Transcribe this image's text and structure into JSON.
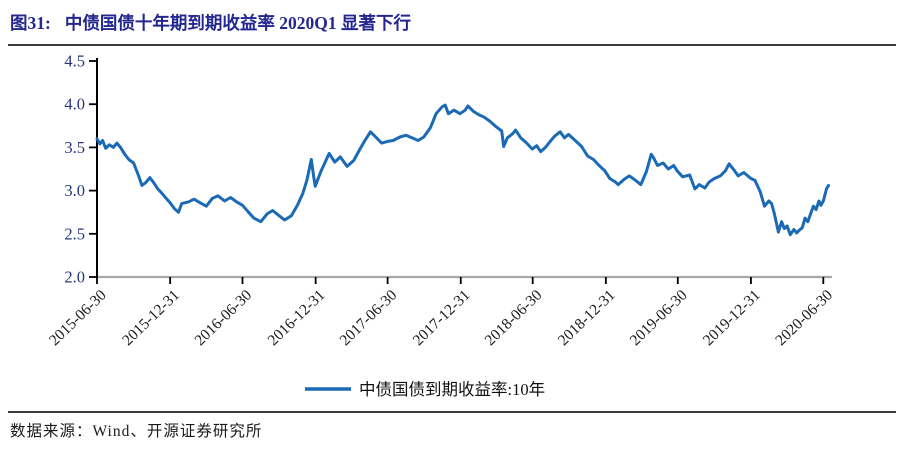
{
  "figure": {
    "title_label": "图31:",
    "title_text": "中债国债十年期到期收益率 2020Q1 显著下行",
    "source_text": "数据来源：Wind、开源证券研究所"
  },
  "colors": {
    "title_navy": "#23278f",
    "ytick_navy": "#27357e",
    "xtick_dark": "#1a1a1a",
    "line_blue": "#1b6ab5",
    "axis_gray": "#a8a8a8",
    "axis_black": "#000000",
    "rule_dark": "#3d3d3d"
  },
  "chart_data": {
    "type": "line",
    "title": "",
    "xlabel": "",
    "ylabel": "",
    "grid": false,
    "ylim": [
      2.0,
      4.5
    ],
    "y_ticks": [
      "4.5",
      "4.0",
      "3.5",
      "3.0",
      "2.5",
      "2.0"
    ],
    "x_ticks": [
      "2015-06-30",
      "2015-12-31",
      "2016-06-30",
      "2016-12-31",
      "2017-06-30",
      "2017-12-31",
      "2018-06-30",
      "2018-12-31",
      "2019-06-30",
      "2019-12-31",
      "2020-06-30"
    ],
    "x_range": [
      "2015-06-30",
      "2020-07-13"
    ],
    "legend": {
      "position": "bottom",
      "entries": [
        "中债国债到期收益率:10年"
      ]
    },
    "series": [
      {
        "name": "中债国债到期收益率:10年",
        "color": "#1b6ab5",
        "points": [
          [
            "2015-06-30",
            3.6
          ],
          [
            "2015-07-07",
            3.54
          ],
          [
            "2015-07-14",
            3.58
          ],
          [
            "2015-07-22",
            3.49
          ],
          [
            "2015-07-31",
            3.53
          ],
          [
            "2015-08-10",
            3.5
          ],
          [
            "2015-08-19",
            3.55
          ],
          [
            "2015-08-28",
            3.5
          ],
          [
            "2015-09-08",
            3.42
          ],
          [
            "2015-09-18",
            3.36
          ],
          [
            "2015-09-30",
            3.32
          ],
          [
            "2015-10-12",
            3.18
          ],
          [
            "2015-10-21",
            3.06
          ],
          [
            "2015-10-30",
            3.09
          ],
          [
            "2015-11-10",
            3.15
          ],
          [
            "2015-11-20",
            3.09
          ],
          [
            "2015-11-30",
            3.02
          ],
          [
            "2015-12-10",
            2.97
          ],
          [
            "2015-12-21",
            2.91
          ],
          [
            "2015-12-31",
            2.86
          ],
          [
            "2016-01-11",
            2.79
          ],
          [
            "2016-01-21",
            2.75
          ],
          [
            "2016-01-29",
            2.85
          ],
          [
            "2016-02-16",
            2.87
          ],
          [
            "2016-02-29",
            2.9
          ],
          [
            "2016-03-15",
            2.86
          ],
          [
            "2016-03-31",
            2.82
          ],
          [
            "2016-04-15",
            2.91
          ],
          [
            "2016-04-29",
            2.94
          ],
          [
            "2016-05-16",
            2.88
          ],
          [
            "2016-05-31",
            2.92
          ],
          [
            "2016-06-15",
            2.87
          ],
          [
            "2016-06-30",
            2.83
          ],
          [
            "2016-07-15",
            2.75
          ],
          [
            "2016-07-29",
            2.68
          ],
          [
            "2016-08-15",
            2.64
          ],
          [
            "2016-08-31",
            2.73
          ],
          [
            "2016-09-14",
            2.77
          ],
          [
            "2016-09-30",
            2.71
          ],
          [
            "2016-10-14",
            2.66
          ],
          [
            "2016-10-31",
            2.71
          ],
          [
            "2016-11-15",
            2.83
          ],
          [
            "2016-11-29",
            2.97
          ],
          [
            "2016-12-09",
            3.12
          ],
          [
            "2016-12-20",
            3.36
          ],
          [
            "2016-12-26",
            3.16
          ],
          [
            "2016-12-30",
            3.05
          ],
          [
            "2017-01-13",
            3.22
          ],
          [
            "2017-02-03",
            3.43
          ],
          [
            "2017-02-17",
            3.33
          ],
          [
            "2017-03-03",
            3.39
          ],
          [
            "2017-03-20",
            3.28
          ],
          [
            "2017-04-06",
            3.35
          ],
          [
            "2017-04-20",
            3.47
          ],
          [
            "2017-05-04",
            3.58
          ],
          [
            "2017-05-18",
            3.68
          ],
          [
            "2017-05-31",
            3.62
          ],
          [
            "2017-06-15",
            3.55
          ],
          [
            "2017-06-30",
            3.57
          ],
          [
            "2017-07-14",
            3.58
          ],
          [
            "2017-07-31",
            3.62
          ],
          [
            "2017-08-15",
            3.64
          ],
          [
            "2017-08-31",
            3.61
          ],
          [
            "2017-09-15",
            3.58
          ],
          [
            "2017-09-29",
            3.62
          ],
          [
            "2017-10-16",
            3.73
          ],
          [
            "2017-10-30",
            3.89
          ],
          [
            "2017-11-14",
            3.97
          ],
          [
            "2017-11-22",
            3.99
          ],
          [
            "2017-11-30",
            3.89
          ],
          [
            "2017-12-14",
            3.93
          ],
          [
            "2017-12-29",
            3.89
          ],
          [
            "2018-01-11",
            3.93
          ],
          [
            "2018-01-18",
            3.98
          ],
          [
            "2018-01-31",
            3.92
          ],
          [
            "2018-02-14",
            3.88
          ],
          [
            "2018-02-28",
            3.85
          ],
          [
            "2018-03-15",
            3.8
          ],
          [
            "2018-03-30",
            3.74
          ],
          [
            "2018-04-13",
            3.69
          ],
          [
            "2018-04-18",
            3.51
          ],
          [
            "2018-04-27",
            3.61
          ],
          [
            "2018-05-11",
            3.66
          ],
          [
            "2018-05-18",
            3.7
          ],
          [
            "2018-05-31",
            3.61
          ],
          [
            "2018-06-15",
            3.55
          ],
          [
            "2018-06-29",
            3.48
          ],
          [
            "2018-07-10",
            3.52
          ],
          [
            "2018-07-20",
            3.45
          ],
          [
            "2018-08-01",
            3.5
          ],
          [
            "2018-08-13",
            3.57
          ],
          [
            "2018-08-24",
            3.63
          ],
          [
            "2018-09-07",
            3.68
          ],
          [
            "2018-09-18",
            3.61
          ],
          [
            "2018-09-28",
            3.65
          ],
          [
            "2018-10-15",
            3.58
          ],
          [
            "2018-10-31",
            3.51
          ],
          [
            "2018-11-15",
            3.4
          ],
          [
            "2018-11-30",
            3.36
          ],
          [
            "2018-12-14",
            3.29
          ],
          [
            "2018-12-28",
            3.23
          ],
          [
            "2019-01-10",
            3.14
          ],
          [
            "2019-01-24",
            3.1
          ],
          [
            "2019-01-31",
            3.07
          ],
          [
            "2019-02-15",
            3.13
          ],
          [
            "2019-02-28",
            3.17
          ],
          [
            "2019-03-15",
            3.12
          ],
          [
            "2019-03-29",
            3.07
          ],
          [
            "2019-04-12",
            3.22
          ],
          [
            "2019-04-24",
            3.42
          ],
          [
            "2019-04-30",
            3.38
          ],
          [
            "2019-05-10",
            3.29
          ],
          [
            "2019-05-24",
            3.32
          ],
          [
            "2019-06-06",
            3.25
          ],
          [
            "2019-06-20",
            3.29
          ],
          [
            "2019-06-28",
            3.23
          ],
          [
            "2019-07-12",
            3.16
          ],
          [
            "2019-07-30",
            3.18
          ],
          [
            "2019-08-12",
            3.02
          ],
          [
            "2019-08-23",
            3.07
          ],
          [
            "2019-09-06",
            3.03
          ],
          [
            "2019-09-17",
            3.1
          ],
          [
            "2019-09-30",
            3.14
          ],
          [
            "2019-10-15",
            3.17
          ],
          [
            "2019-10-28",
            3.23
          ],
          [
            "2019-11-06",
            3.31
          ],
          [
            "2019-11-18",
            3.24
          ],
          [
            "2019-11-29",
            3.17
          ],
          [
            "2019-12-13",
            3.21
          ],
          [
            "2019-12-31",
            3.14
          ],
          [
            "2020-01-10",
            3.12
          ],
          [
            "2020-01-23",
            2.99
          ],
          [
            "2020-02-03",
            2.82
          ],
          [
            "2020-02-14",
            2.88
          ],
          [
            "2020-02-21",
            2.85
          ],
          [
            "2020-02-28",
            2.73
          ],
          [
            "2020-03-09",
            2.52
          ],
          [
            "2020-03-17",
            2.64
          ],
          [
            "2020-03-24",
            2.56
          ],
          [
            "2020-03-31",
            2.59
          ],
          [
            "2020-04-08",
            2.49
          ],
          [
            "2020-04-17",
            2.55
          ],
          [
            "2020-04-24",
            2.51
          ],
          [
            "2020-04-30",
            2.54
          ],
          [
            "2020-05-08",
            2.57
          ],
          [
            "2020-05-15",
            2.68
          ],
          [
            "2020-05-22",
            2.64
          ],
          [
            "2020-05-29",
            2.73
          ],
          [
            "2020-06-05",
            2.82
          ],
          [
            "2020-06-12",
            2.78
          ],
          [
            "2020-06-19",
            2.88
          ],
          [
            "2020-06-24",
            2.83
          ],
          [
            "2020-06-30",
            2.88
          ],
          [
            "2020-07-03",
            2.93
          ],
          [
            "2020-07-08",
            3.02
          ],
          [
            "2020-07-13",
            3.06
          ]
        ]
      }
    ]
  }
}
